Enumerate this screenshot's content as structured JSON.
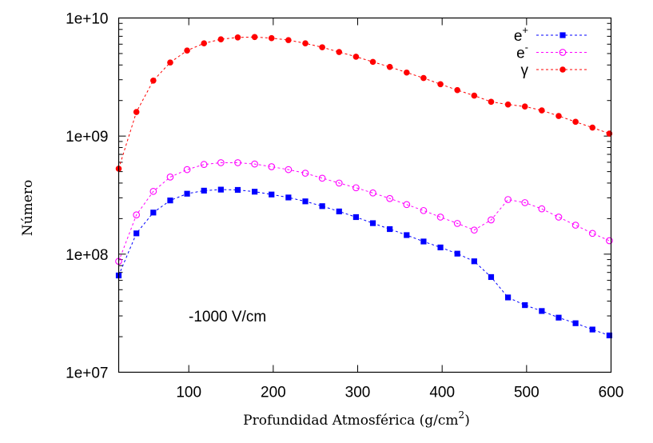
{
  "chart_data": {
    "type": "line",
    "xlabel": "Profundidad Atmosférica (g/cm",
    "xlabel_sup": "2",
    "xlabel_close": ")",
    "ylabel": "Número",
    "xlim": [
      17,
      600
    ],
    "ylim": [
      10000000,
      10000000000
    ],
    "yscale": "log",
    "x_ticks": [
      100,
      200,
      300,
      400,
      500,
      600
    ],
    "y_ticks": [
      {
        "value": 10000000,
        "label": "1e+07"
      },
      {
        "value": 100000000,
        "label": "1e+08"
      },
      {
        "value": 1000000000,
        "label": "1e+09"
      },
      {
        "value": 10000000000,
        "label": "1e+10"
      }
    ],
    "annotation": "-1000 V/cm",
    "legend_position": "top-right",
    "x": [
      17,
      38,
      58,
      78,
      98,
      118,
      138,
      158,
      178,
      198,
      218,
      238,
      258,
      278,
      298,
      318,
      338,
      358,
      378,
      398,
      418,
      438,
      458,
      478,
      498,
      518,
      538,
      558,
      578,
      598
    ],
    "series": [
      {
        "name": "e",
        "name_sup": "+",
        "color": "#0000ff",
        "marker": "square-filled",
        "values": [
          66000000,
          150000000,
          225000000,
          285000000,
          325000000,
          345000000,
          352000000,
          350000000,
          338000000,
          320000000,
          302000000,
          280000000,
          255000000,
          230000000,
          206000000,
          183000000,
          163000000,
          145000000,
          128000000,
          114000000,
          101000000,
          87000000,
          64000000,
          43000000,
          37000000,
          33000000,
          29000000,
          26000000,
          23000000,
          20500000
        ]
      },
      {
        "name": "e",
        "name_sup": "-",
        "color": "#ff00ff",
        "marker": "circle-open",
        "values": [
          87000000,
          215000000,
          340000000,
          450000000,
          520000000,
          575000000,
          595000000,
          595000000,
          580000000,
          550000000,
          520000000,
          485000000,
          440000000,
          400000000,
          365000000,
          330000000,
          296000000,
          263000000,
          234000000,
          206000000,
          182000000,
          160000000,
          195000000,
          290000000,
          273000000,
          242000000,
          206000000,
          176000000,
          150000000,
          130000000
        ]
      },
      {
        "name": "γ",
        "name_sup": "",
        "color": "#ff0000",
        "marker": "circle-filled",
        "values": [
          530000000,
          1600000000,
          2950000000,
          4200000000,
          5300000000,
          6100000000,
          6600000000,
          6850000000,
          6900000000,
          6750000000,
          6500000000,
          6100000000,
          5650000000,
          5150000000,
          4700000000,
          4250000000,
          3850000000,
          3450000000,
          3100000000,
          2750000000,
          2450000000,
          2200000000,
          1950000000,
          1850000000,
          1780000000,
          1650000000,
          1480000000,
          1320000000,
          1180000000,
          1050000000
        ]
      }
    ]
  }
}
